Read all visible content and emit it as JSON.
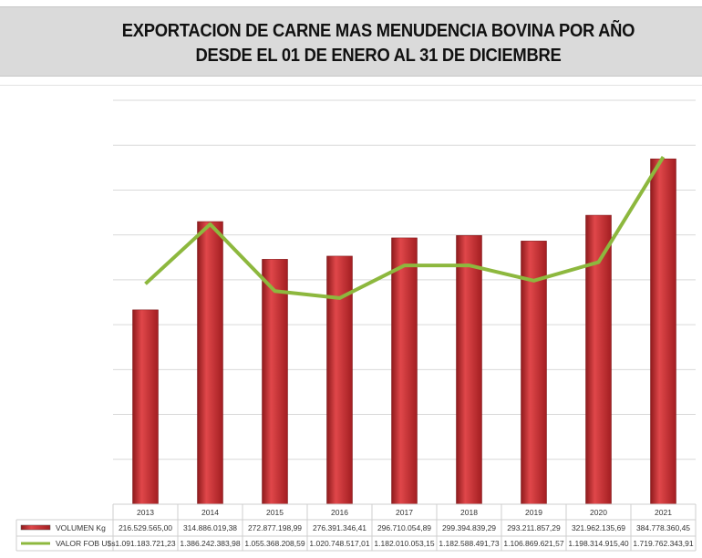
{
  "chart_data": {
    "type": "bar",
    "title": "EXPORTACION DE CARNE MAS MENUDENCIA BOVINA POR AÑO",
    "subtitle": "DESDE EL 01 DE ENERO AL 31 DE DICIEMBRE",
    "categories": [
      "2013",
      "2014",
      "2015",
      "2016",
      "2017",
      "2018",
      "2019",
      "2020",
      "2021"
    ],
    "series": [
      {
        "name": "VOLUMEN Kg",
        "type": "bar",
        "axis": "primary",
        "color": "#c0292b",
        "values": [
          216529565.0,
          314886019.38,
          272877198.99,
          276391346.41,
          296710054.89,
          299394839.29,
          293211857.29,
          321962135.69,
          384778360.45
        ],
        "labels": [
          "216.529.565,00",
          "314.886.019,38",
          "272.877.198,99",
          "276.391.346,41",
          "296.710.054,89",
          "299.394.839,29",
          "293.211.857,29",
          "321.962.135,69",
          "384.778.360,45"
        ]
      },
      {
        "name": "VALOR FOB U$s",
        "type": "line",
        "axis": "secondary",
        "color": "#8db83e",
        "values": [
          1091183721.23,
          1386242383.98,
          1055368208.59,
          1020748517.01,
          1182010053.15,
          1182588491.73,
          1106869621.57,
          1198314915.4,
          1719762343.91
        ],
        "labels": [
          "1.091.183.721,23",
          "1.386.242.383,98",
          "1.055.368.208,59",
          "1.020.748.517,01",
          "1.182.010.053,15",
          "1.182.588.491,73",
          "1.106.869.621,57",
          "1.198.314.915,40",
          "1.719.762.343,91"
        ]
      }
    ],
    "ylim": [
      0,
      450000000
    ],
    "y2lim": [
      0,
      2000000000
    ],
    "grid": true,
    "legend": "data-table-bottom"
  }
}
